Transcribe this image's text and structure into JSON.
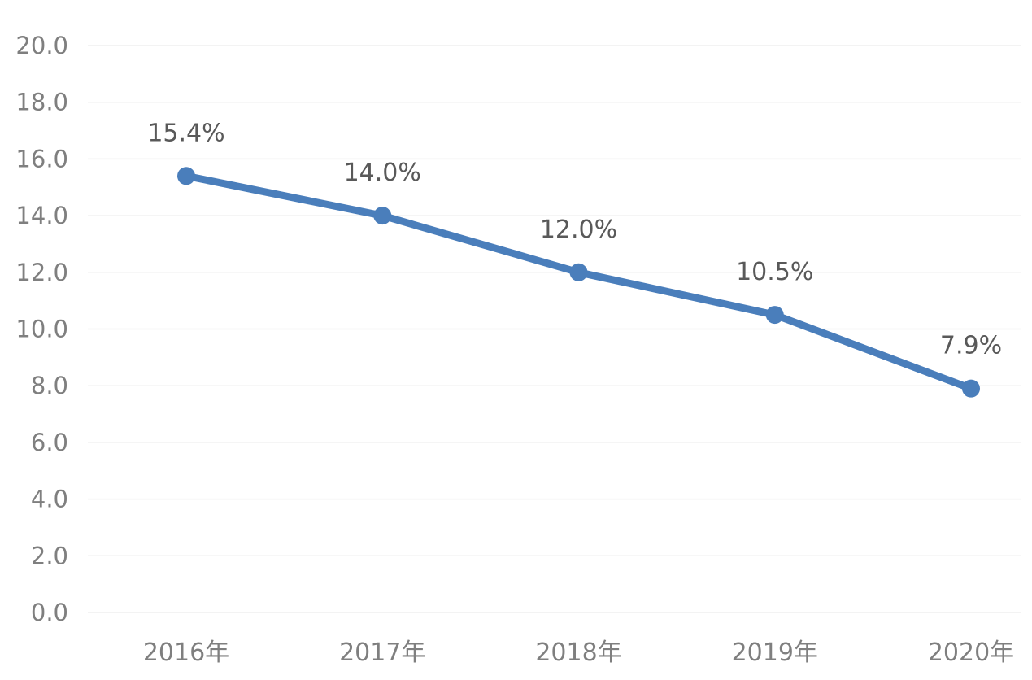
{
  "chart_data": {
    "type": "line",
    "title": "",
    "xlabel": "",
    "ylabel": "",
    "categories": [
      "2016年",
      "2017年",
      "2018年",
      "2019年",
      "2020年"
    ],
    "series": [
      {
        "values": [
          15.4,
          14.0,
          12.0,
          10.5,
          7.9
        ],
        "data_labels": [
          "15.4%",
          "14.0%",
          "12.0%",
          "10.5%",
          "7.9%"
        ],
        "color": "#4a7ebb"
      }
    ],
    "ylim": [
      0,
      20
    ],
    "yticks": [
      "0.0",
      "2.0",
      "4.0",
      "6.0",
      "8.0",
      "10.0",
      "12.0",
      "14.0",
      "16.0",
      "18.0",
      "20.0"
    ],
    "grid": true,
    "legend": "none"
  }
}
